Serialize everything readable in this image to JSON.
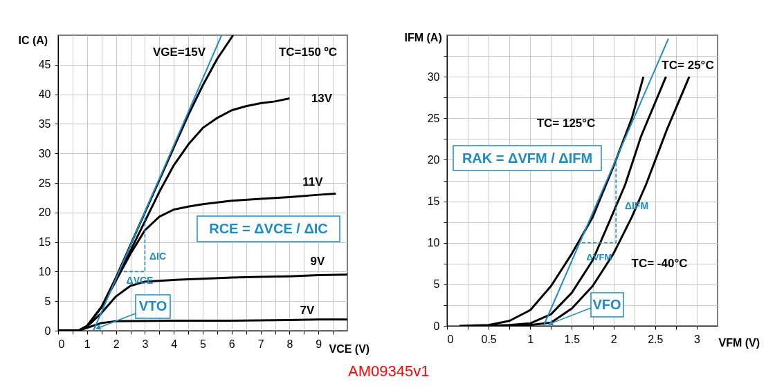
{
  "chart_data": [
    {
      "type": "line",
      "xlabel": "VCE (V)",
      "ylabel": "IC (A)",
      "xlim": [
        0,
        10
      ],
      "ylim": [
        0,
        50
      ],
      "xticks": [
        0,
        {
          "value": 0.5,
          "label": null
        },
        1,
        {
          "value": 1.5,
          "label": null
        },
        2,
        {
          "value": 2.5,
          "label": null
        },
        3,
        {
          "value": 3.5,
          "label": null
        },
        4,
        {
          "value": 4.5,
          "label": null
        },
        5,
        {
          "value": 5.5,
          "label": null
        },
        6,
        {
          "value": 6.5,
          "label": null
        },
        7,
        {
          "value": 7.5,
          "label": null
        },
        8,
        {
          "value": 8.5,
          "label": null
        },
        9,
        {
          "value": 9.5,
          "label": null
        }
      ],
      "yticks": [
        0,
        5,
        10,
        15,
        20,
        25,
        30,
        35,
        40,
        45
      ],
      "grid": true,
      "series": [
        {
          "name": "VGE=15V",
          "color": "#000000",
          "x": [
            0,
            0.7,
            1,
            1.5,
            2,
            2.5,
            3,
            3.5,
            4,
            4.5,
            5,
            5.5,
            6.05
          ],
          "values": [
            0,
            0,
            0.8,
            4,
            9,
            14.5,
            20,
            25.5,
            31,
            36.5,
            41.5,
            46,
            50
          ]
        },
        {
          "name": "13V",
          "color": "#000000",
          "x": [
            0,
            0.7,
            1,
            1.5,
            2,
            2.5,
            3,
            3.5,
            4,
            4.5,
            5,
            5.5,
            6,
            6.5,
            7,
            7.5,
            8
          ],
          "values": [
            0,
            0,
            0.8,
            4,
            8.5,
            13.5,
            18.5,
            23.5,
            28,
            31.5,
            34.3,
            36,
            37.3,
            38,
            38.5,
            38.8,
            39.3
          ]
        },
        {
          "name": "11V",
          "color": "#000000",
          "x": [
            0,
            0.7,
            1,
            1.5,
            2,
            2.5,
            3,
            3.5,
            4,
            4.5,
            5,
            6,
            7,
            8,
            9,
            9.6
          ],
          "values": [
            0,
            0,
            0.8,
            4,
            8.5,
            13,
            17,
            19.3,
            20.5,
            21,
            21.4,
            22,
            22.3,
            22.6,
            23,
            23.2
          ]
        },
        {
          "name": "9V",
          "color": "#000000",
          "x": [
            0,
            0.7,
            1,
            1.5,
            2,
            2.5,
            3,
            4,
            5,
            6,
            7,
            8,
            9,
            10
          ],
          "values": [
            0,
            0,
            0.7,
            3,
            5.8,
            7.6,
            8.3,
            8.6,
            8.8,
            9,
            9.1,
            9.2,
            9.4,
            9.5
          ]
        },
        {
          "name": "7V",
          "color": "#000000",
          "x": [
            0,
            0.7,
            1,
            1.5,
            2,
            4,
            6,
            8,
            9,
            10
          ],
          "values": [
            0,
            0,
            0.5,
            1.3,
            1.6,
            1.7,
            1.7,
            1.8,
            1.9,
            1.9
          ]
        },
        {
          "color": "#1a8cc8",
          "x": [
            1.22,
            5.65
          ],
          "values": [
            0,
            50
          ]
        },
        {
          "color": "#1a8cc8",
          "line_style": "dashed",
          "x": [
            2.27,
            3,
            3
          ],
          "values": [
            10,
            10,
            20
          ]
        }
      ],
      "annotations": [
        "TC=150 ºC",
        "RCE = ΔVCE / ΔIC",
        "ΔIC",
        "ΔVCE",
        {
          "text": "VTO",
          "x": 1.4,
          "y": 0.5
        }
      ]
    },
    {
      "type": "line",
      "xlabel": "VFM (V)",
      "ylabel": "IFM (A)",
      "xlim": [
        0,
        3.25
      ],
      "ylim": [
        0,
        35
      ],
      "xticks": [
        0,
        {
          "value": 0.25,
          "label": null
        },
        0.5,
        {
          "value": 0.75,
          "label": null
        },
        1,
        {
          "value": 1.25,
          "label": null
        },
        1.5,
        {
          "value": 1.75,
          "label": null
        },
        2,
        {
          "value": 2.25,
          "label": null
        },
        2.5,
        {
          "value": 2.75,
          "label": null
        },
        3
      ],
      "yticks": [
        0,
        {
          "value": 2.5,
          "label": null
        },
        5,
        {
          "value": 7.5,
          "label": null
        },
        10,
        {
          "value": 12.5,
          "label": null
        },
        15,
        {
          "value": 17.5,
          "label": null
        },
        20,
        {
          "value": 22.5,
          "label": null
        },
        25,
        {
          "value": 27.5,
          "label": null
        },
        30,
        {
          "value": 32.5,
          "label": null
        }
      ],
      "grid": true,
      "series": [
        {
          "name": "TC= 125°C",
          "color": "#000000",
          "x": [
            0.15,
            0.5,
            0.75,
            1,
            1.25,
            1.5,
            1.75,
            2,
            2.22,
            2.36
          ],
          "values": [
            0,
            0.1,
            0.6,
            1.9,
            4.8,
            8.7,
            13.1,
            19.2,
            25,
            30
          ]
        },
        {
          "name": "TC= 25°C",
          "color": "#000000",
          "x": [
            0.5,
            0.75,
            1,
            1.25,
            1.5,
            1.75,
            2,
            2.14,
            2.33,
            2.63
          ],
          "values": [
            0,
            0.1,
            0.3,
            1.4,
            4,
            7.9,
            13.7,
            17,
            22.8,
            30
          ]
        },
        {
          "name": "TC= -40°C",
          "color": "#000000",
          "x": [
            0.55,
            1,
            1.25,
            1.5,
            1.75,
            2,
            2.22,
            2.39,
            2.64,
            2.91
          ],
          "values": [
            0,
            0.1,
            0.4,
            2.1,
            4.8,
            8.7,
            13.1,
            17,
            23.6,
            30
          ]
        },
        {
          "color": "#1a8cc8",
          "x": [
            1.16,
            2.66
          ],
          "values": [
            0,
            34.6
          ]
        },
        {
          "color": "#1a8cc8",
          "line_style": "dashed",
          "x": [
            1.62,
            2.03,
            2.03
          ],
          "values": [
            10,
            10,
            20
          ]
        }
      ],
      "annotations": [
        "RAK = ΔVFM / ΔIFM",
        "ΔIFM",
        "ΔVFM",
        {
          "text": "VFO",
          "x": 1.25,
          "y": 0.3
        },
        "AM09345v1"
      ]
    }
  ]
}
